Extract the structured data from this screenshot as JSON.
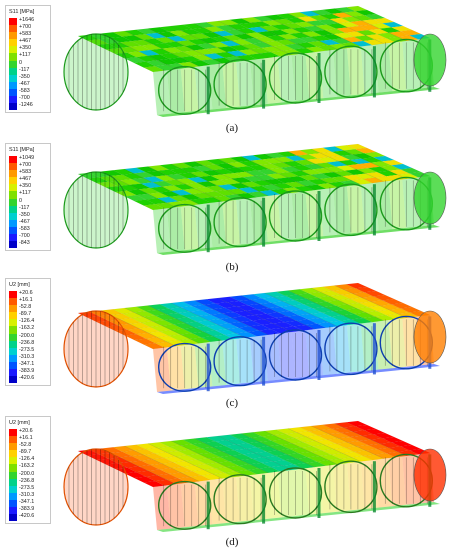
{
  "panels": [
    {
      "caption": "(a)",
      "legend": {
        "title": "S11 [MPa]",
        "entries": [
          "+1646",
          "+700",
          "+583",
          "+467",
          "+350",
          "+117",
          "0",
          "-117",
          "-350",
          "-467",
          "-583",
          "-700",
          "-1246"
        ]
      }
    },
    {
      "caption": "(b)",
      "legend": {
        "title": "S11 [MPa]",
        "entries": [
          "+1049",
          "+700",
          "+583",
          "+467",
          "+350",
          "+117",
          "0",
          "-117",
          "-350",
          "-467",
          "-583",
          "-700",
          "-843"
        ]
      }
    },
    {
      "caption": "(c)",
      "legend": {
        "title": "U2 [mm]",
        "entries": [
          "+20.6",
          "+16.1",
          "-52.8",
          "-89.7",
          "-126.4",
          "-163.2",
          "-200.0",
          "-236.8",
          "-273.5",
          "-310.3",
          "-347.1",
          "-383.9",
          "-420.6"
        ]
      }
    },
    {
      "caption": "(d)",
      "legend": {
        "title": "U2 [mm]",
        "entries": [
          "+20.6",
          "+16.1",
          "-52.8",
          "-89.7",
          "-126.4",
          "-163.2",
          "-200.0",
          "-236.8",
          "-273.5",
          "-310.3",
          "-347.1",
          "-383.9",
          "-420.6"
        ]
      }
    }
  ],
  "colorscale": [
    "#ff0000",
    "#ff5a00",
    "#ff9a00",
    "#ffd000",
    "#d8f000",
    "#7fe000",
    "#33d42e",
    "#00d28a",
    "#00d0d0",
    "#0099ff",
    "#0055ff",
    "#1a1aff",
    "#0000c8"
  ]
}
